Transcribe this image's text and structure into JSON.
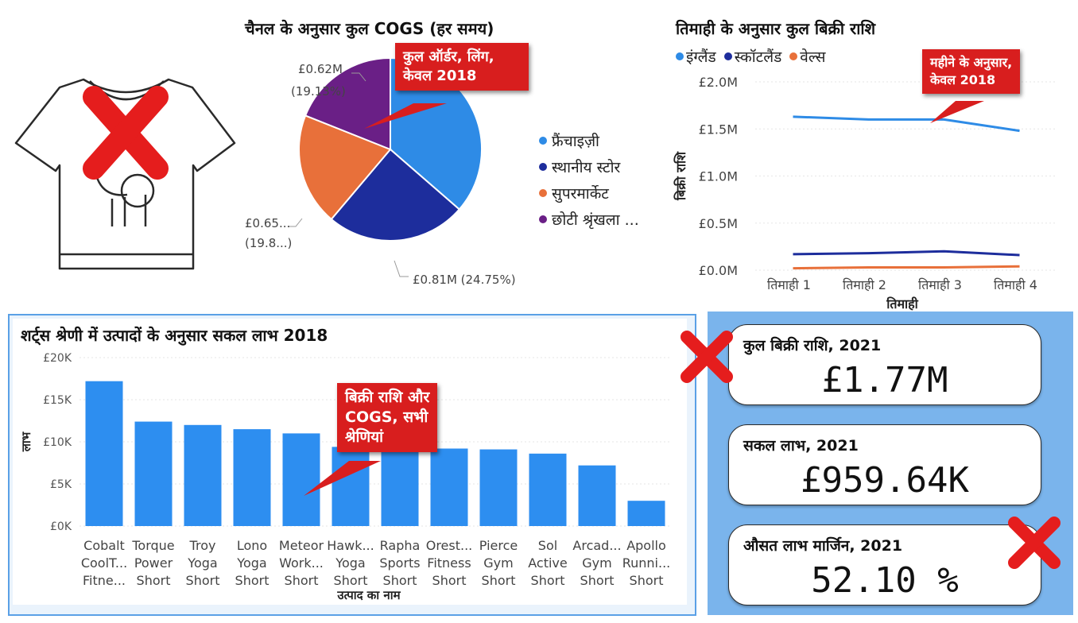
{
  "pie_title": "चैनल के अनुसार कुल COGS (हर समय)",
  "pie_callout": [
    "कुल ऑर्डर, लिंग,",
    "केवल 2018"
  ],
  "line_title": "तिमाही के अनुसार कुल बिक्री राशि",
  "line_callout": [
    "महीने के अनुसार,",
    "केवल 2018"
  ],
  "bar_title": "शर्ट्स श्रेणी में उत्पादों के अनुसार सकल लाभ 2018",
  "bar_callout": [
    "बिक्री राशि और",
    "COGS, सभी",
    "श्रेणियां"
  ],
  "pie_labels": {
    "purple": [
      "£0.62M",
      "(19.13%)"
    ],
    "orange": [
      "£0.65...",
      "(19.8...)"
    ],
    "navy": "£0.81M (24.75%)"
  },
  "kpis": [
    {
      "title": "कुल बिक्री राशि, 2021",
      "value": "£1.77M"
    },
    {
      "title": "सकल लाभ, 2021",
      "value": "£959.64K"
    },
    {
      "title": "औसत लाभ मार्जिन, 2021",
      "value": "52.10 %"
    }
  ],
  "colors": {
    "blue": "#2e8be6",
    "navy": "#1d2d9c",
    "orange": "#e8703a",
    "purple": "#6a1f86",
    "bar": "#2d8ef0",
    "callout": "#d81e1e",
    "cross": "#e51d1d"
  },
  "icons": [
    "tshirt-icon",
    "red-cross-icon"
  ],
  "chart_data": [
    {
      "type": "pie",
      "legend": [
        "फ्रैंचाइज़ी",
        "स्थानीय स्टोर",
        "सुपरमार्केट",
        "छोटी श्रृंखला ..."
      ],
      "legend_placement": "right",
      "slices": [
        {
          "name": "फ्रैंचाइज़ी",
          "value": 1.19,
          "percent": 36.3
        },
        {
          "name": "स्थानीय स्टोर",
          "value": 0.81,
          "percent": 24.75
        },
        {
          "name": "सुपरमार्केट",
          "value": 0.65,
          "percent": 19.8
        },
        {
          "name": "छोटी श्रृंखला ...",
          "value": 0.62,
          "percent": 19.13
        }
      ]
    },
    {
      "type": "line",
      "legend_placement": "top-left",
      "xlabel": "तिमाही",
      "ylabel": "बिक्री राशि",
      "categories": [
        "तिमाही 1",
        "तिमाही 2",
        "तिमाही 3",
        "तिमाही 4"
      ],
      "yticks": [
        "£0.0M",
        "£0.5M",
        "£1.0M",
        "£1.5M",
        "£2.0M"
      ],
      "ylim": [
        0,
        2.0
      ],
      "series": [
        {
          "name": "इंग्लैंड",
          "values": [
            1.63,
            1.6,
            1.6,
            1.48
          ]
        },
        {
          "name": "स्कॉटलैंड",
          "values": [
            0.17,
            0.18,
            0.2,
            0.16
          ]
        },
        {
          "name": "वेल्स",
          "values": [
            0.02,
            0.03,
            0.03,
            0.04
          ]
        }
      ]
    },
    {
      "type": "bar",
      "xlabel": "उत्पाद का नाम",
      "ylabel": "लाभ",
      "yticks": [
        "£0K",
        "£5K",
        "£10K",
        "£15K",
        "£20K"
      ],
      "ylim": [
        0,
        20
      ],
      "categories": [
        [
          "Cobalt",
          "CoolT...",
          "Fitne..."
        ],
        [
          "Torque",
          "Power",
          "Short"
        ],
        [
          "Troy",
          "Yoga",
          "Short"
        ],
        [
          "Lono",
          "Yoga",
          "Short"
        ],
        [
          "Meteor",
          "Work...",
          "Short"
        ],
        [
          "Hawk...",
          "Yoga",
          "Short"
        ],
        [
          "Rapha",
          "Sports",
          "Short"
        ],
        [
          "Orest...",
          "Fitness",
          "Short"
        ],
        [
          "Pierce",
          "Gym",
          "Short"
        ],
        [
          "Sol",
          "Active",
          "Short"
        ],
        [
          "Arcad...",
          "Gym",
          "Short"
        ],
        [
          "Apollo",
          "Runni...",
          "Short"
        ]
      ],
      "values": [
        17.2,
        12.4,
        12.0,
        11.5,
        11.0,
        9.4,
        9.3,
        9.2,
        9.1,
        8.6,
        7.2,
        3.0
      ]
    }
  ]
}
